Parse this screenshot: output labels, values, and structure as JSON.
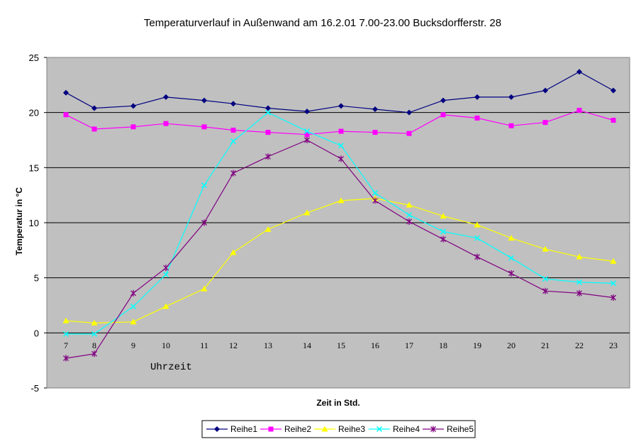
{
  "chart_data": {
    "type": "line",
    "title": "Temperaturverlauf in Außenwand am 16.2.01 7.00-23.00 Bucksdorfferstr. 28",
    "xlabel": "Zeit in Std.",
    "ylabel": "Temperatur in °C",
    "annotation": "Uhrzeit",
    "categories": [
      "7",
      "8",
      "9",
      "10",
      "11",
      "12",
      "13",
      "14",
      "15",
      "16",
      "17",
      "18",
      "19",
      "20",
      "21",
      "22",
      "23"
    ],
    "ylim": [
      -5,
      25
    ],
    "yticks": [
      -5,
      0,
      5,
      10,
      15,
      20,
      25
    ],
    "grid": "horizontal",
    "legend_position": "bottom",
    "plot_background": "#c0c0c0",
    "series": [
      {
        "name": "Reihe1",
        "color": "#000080",
        "marker": "diamond",
        "values": [
          21.8,
          20.4,
          20.6,
          21.4,
          21.1,
          20.8,
          20.4,
          20.1,
          20.6,
          20.3,
          20.0,
          21.1,
          21.4,
          21.4,
          22.0,
          23.7,
          22.0
        ]
      },
      {
        "name": "Reihe2",
        "color": "#ff00ff",
        "marker": "square",
        "values": [
          19.8,
          18.5,
          18.7,
          19.0,
          18.7,
          18.4,
          18.2,
          18.0,
          18.3,
          18.2,
          18.1,
          19.8,
          19.5,
          18.8,
          19.1,
          20.2,
          19.3
        ]
      },
      {
        "name": "Reihe3",
        "color": "#ffff00",
        "marker": "triangle",
        "values": [
          1.1,
          0.9,
          1.0,
          2.4,
          4.0,
          7.3,
          9.4,
          10.9,
          12.0,
          12.2,
          11.6,
          10.6,
          9.8,
          8.6,
          7.6,
          6.9,
          6.5
        ]
      },
      {
        "name": "Reihe4",
        "color": "#00ffff",
        "marker": "x",
        "values": [
          -0.1,
          -0.1,
          2.4,
          5.3,
          13.4,
          17.4,
          20.0,
          18.3,
          17.0,
          12.7,
          10.7,
          9.2,
          8.6,
          6.8,
          4.9,
          4.6,
          4.5
        ]
      },
      {
        "name": "Reihe5",
        "color": "#800080",
        "marker": "star",
        "values": [
          -2.3,
          -1.9,
          3.6,
          5.9,
          10.0,
          14.5,
          16.0,
          17.5,
          15.8,
          12.0,
          10.1,
          8.5,
          6.9,
          5.4,
          3.8,
          3.6,
          3.2
        ]
      }
    ]
  }
}
